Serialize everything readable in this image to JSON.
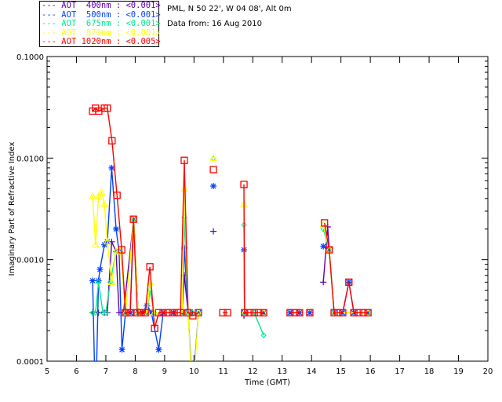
{
  "header": {
    "site": "PML, N 50 22', W 04 08', Alt 0m",
    "date": "Data from: 16 Aug 2010"
  },
  "chart_data": {
    "type": "line",
    "xlabel": "Time (GMT)",
    "ylabel": "Imaginary Part of Refractive Index",
    "xlim": [
      5,
      20
    ],
    "ylim": [
      0.0001,
      0.1
    ],
    "yscale": "log",
    "xticks": [
      "5",
      "6",
      "7",
      "8",
      "9",
      "10",
      "11",
      "12",
      "13",
      "14",
      "15",
      "16",
      "17",
      "18",
      "19",
      "20"
    ],
    "yticks": [
      "0.0001",
      "0.0010",
      "0.0100",
      "0.1000"
    ],
    "legend_position": "top-left-outside",
    "series": [
      {
        "name": "AOT  400nm : <0.001>",
        "color": "#6000b0",
        "marker": "plus",
        "points": [
          [
            6.55,
            0.0003
          ],
          [
            6.75,
            0.0003
          ],
          [
            6.95,
            0.0003
          ],
          [
            7.05,
            0.0003
          ],
          [
            7.2,
            0.0015
          ],
          [
            7.35,
            0.0012
          ],
          [
            7.45,
            0.0003
          ],
          [
            7.6,
            0.0003
          ],
          [
            7.95,
            0.0025
          ],
          [
            8.1,
            0.0003
          ],
          [
            8.4,
            0.0003
          ],
          [
            8.6,
            0.0003
          ],
          [
            9.6,
            0.0003
          ],
          [
            9.67,
            0.0007
          ],
          [
            9.8,
            0.0003
          ],
          [
            9.95,
            0.0003
          ],
          null,
          [
            10.66,
            0.0019
          ],
          null,
          [
            11.7,
            0.00028
          ],
          null,
          [
            14.4,
            0.0006
          ],
          [
            14.55,
            0.0021
          ],
          [
            14.6,
            0.00125
          ],
          null
        ]
      },
      {
        "name": "AOT  500nm : <0.001>",
        "color": "#0040ff",
        "marker": "asterisk",
        "points": [
          [
            6.55,
            0.00062
          ],
          [
            6.65,
            3e-05
          ],
          [
            6.75,
            0.00062
          ],
          [
            6.8,
            0.0008
          ],
          [
            6.95,
            0.0014
          ],
          [
            7.05,
            0.0015
          ],
          [
            7.2,
            0.008
          ],
          [
            7.35,
            0.002
          ],
          [
            7.45,
            0.0012
          ],
          [
            7.55,
            0.00013
          ],
          [
            7.67,
            0.0003
          ],
          [
            7.83,
            0.0003
          ],
          [
            7.95,
            0.0025
          ],
          [
            8.1,
            0.0003
          ],
          [
            8.25,
            0.0003
          ],
          [
            8.4,
            0.00035
          ],
          [
            8.55,
            0.0003
          ],
          [
            8.8,
            0.00013
          ],
          [
            8.95,
            0.0003
          ],
          [
            9.3,
            0.0003
          ],
          [
            9.6,
            0.0003
          ],
          [
            9.67,
            0.0013
          ],
          [
            9.8,
            0.0003
          ],
          [
            9.95,
            5e-05
          ],
          [
            10.15,
            0.0003
          ],
          null,
          [
            10.66,
            0.0053
          ],
          null,
          [
            11.7,
            0.00125
          ],
          [
            11.72,
            0.0003
          ],
          [
            12.37,
            0.0003
          ],
          null,
          [
            13.27,
            0.0003
          ],
          [
            13.59,
            0.0003
          ],
          null,
          [
            13.94,
            0.0003
          ],
          null,
          [
            14.4,
            0.00135
          ],
          [
            14.6,
            0.00125
          ],
          [
            14.77,
            0.0003
          ],
          [
            15.06,
            0.0003
          ],
          [
            15.27,
            0.0006
          ],
          [
            15.44,
            0.0003
          ],
          [
            15.92,
            0.0003
          ]
        ]
      },
      {
        "name": "AOT  675nm : <0.001>",
        "color": "#00e890",
        "marker": "diamond",
        "points": [
          [
            6.55,
            0.0003
          ],
          [
            6.65,
            0.0003
          ],
          [
            6.75,
            0.0006
          ],
          [
            6.9,
            0.0003
          ],
          [
            7.0,
            0.0003
          ],
          [
            7.15,
            0.0006
          ],
          [
            7.35,
            0.0012
          ],
          [
            7.5,
            0.0012
          ],
          [
            7.67,
            0.0003
          ],
          [
            7.95,
            0.0025
          ],
          [
            8.1,
            0.0003
          ],
          [
            8.4,
            0.0003
          ],
          [
            8.5,
            0.0005
          ],
          [
            8.65,
            0.0003
          ],
          [
            9.6,
            0.0003
          ],
          [
            9.67,
            0.0026
          ],
          [
            9.8,
            0.0003
          ],
          [
            9.95,
            0.0003
          ],
          [
            10.15,
            0.0003
          ],
          null,
          [
            10.66,
            0.0099
          ],
          null,
          [
            11.7,
            0.0022
          ],
          [
            11.72,
            0.0003
          ],
          [
            12.05,
            0.0003
          ],
          [
            12.37,
            0.00018
          ],
          null,
          [
            14.4,
            0.002
          ],
          [
            14.6,
            0.00125
          ],
          [
            14.77,
            0.0003
          ],
          [
            15.92,
            0.0003
          ]
        ]
      },
      {
        "name": "AOT  870nm : <0.001>",
        "color": "#ffff00",
        "marker": "triangle",
        "points": [
          [
            6.55,
            0.0042
          ],
          [
            6.65,
            0.0014
          ],
          [
            6.75,
            0.0042
          ],
          [
            6.85,
            0.0046
          ],
          [
            6.95,
            0.0035
          ],
          [
            7.05,
            0.0015
          ],
          [
            7.2,
            0.0006
          ],
          [
            7.35,
            0.0012
          ],
          [
            7.5,
            0.0012
          ],
          [
            7.67,
            0.0003
          ],
          [
            7.95,
            0.0025
          ],
          [
            8.1,
            0.0003
          ],
          [
            8.4,
            0.0003
          ],
          [
            8.5,
            0.0006
          ],
          [
            8.65,
            0.0003
          ],
          [
            9.6,
            0.0003
          ],
          [
            9.67,
            0.005
          ],
          [
            9.8,
            0.0003
          ],
          [
            9.95,
            4e-05
          ],
          [
            10.15,
            0.0003
          ],
          null,
          [
            10.66,
            0.01
          ],
          null,
          [
            11.7,
            0.0035
          ],
          [
            11.72,
            0.0003
          ],
          [
            12.37,
            0.0003
          ],
          null,
          [
            14.4,
            0.0022
          ],
          [
            14.6,
            0.00125
          ],
          [
            14.77,
            0.0003
          ],
          [
            15.92,
            0.0003
          ]
        ]
      },
      {
        "name": "AOT 1020nm : <0.005>",
        "color": "#ff0000",
        "marker": "square",
        "points": [
          [
            6.55,
            0.029
          ],
          [
            6.65,
            0.031
          ],
          [
            6.76,
            0.029
          ],
          [
            6.95,
            0.031
          ],
          [
            7.05,
            0.031
          ],
          [
            7.21,
            0.0148
          ],
          [
            7.38,
            0.0043
          ],
          [
            7.54,
            0.00125
          ],
          [
            7.67,
            0.0003
          ],
          [
            7.83,
            0.0003
          ],
          [
            7.94,
            0.0025
          ],
          [
            8.07,
            0.0003
          ],
          [
            8.2,
            0.0003
          ],
          [
            8.34,
            0.0003
          ],
          [
            8.5,
            0.00085
          ],
          [
            8.66,
            0.00021
          ],
          [
            8.8,
            0.0003
          ],
          [
            8.95,
            0.0003
          ],
          [
            9.11,
            0.0003
          ],
          [
            9.27,
            0.0003
          ],
          [
            9.43,
            0.0003
          ],
          [
            9.54,
            0.0003
          ],
          [
            9.67,
            0.0095
          ],
          [
            9.8,
            0.0003
          ],
          [
            9.96,
            0.00028
          ],
          [
            10.15,
            0.0003
          ],
          null,
          [
            10.66,
            0.0077
          ],
          null,
          [
            10.98,
            0.0003
          ],
          [
            11.14,
            0.0003
          ],
          null,
          [
            11.7,
            0.0055
          ],
          [
            11.72,
            0.0003
          ],
          [
            11.89,
            0.0003
          ],
          [
            12.05,
            0.0003
          ],
          [
            12.2,
            0.0003
          ],
          [
            12.37,
            0.0003
          ],
          null,
          [
            13.27,
            0.0003
          ],
          [
            13.43,
            0.0003
          ],
          [
            13.59,
            0.0003
          ],
          null,
          [
            13.94,
            0.0003
          ],
          null,
          [
            14.44,
            0.0023
          ],
          [
            14.6,
            0.00125
          ],
          [
            14.77,
            0.0003
          ],
          [
            14.9,
            0.0003
          ],
          [
            15.06,
            0.0003
          ],
          [
            15.27,
            0.0006
          ],
          [
            15.44,
            0.0003
          ],
          [
            15.6,
            0.0003
          ],
          [
            15.76,
            0.0003
          ],
          [
            15.92,
            0.0003
          ]
        ]
      }
    ]
  }
}
